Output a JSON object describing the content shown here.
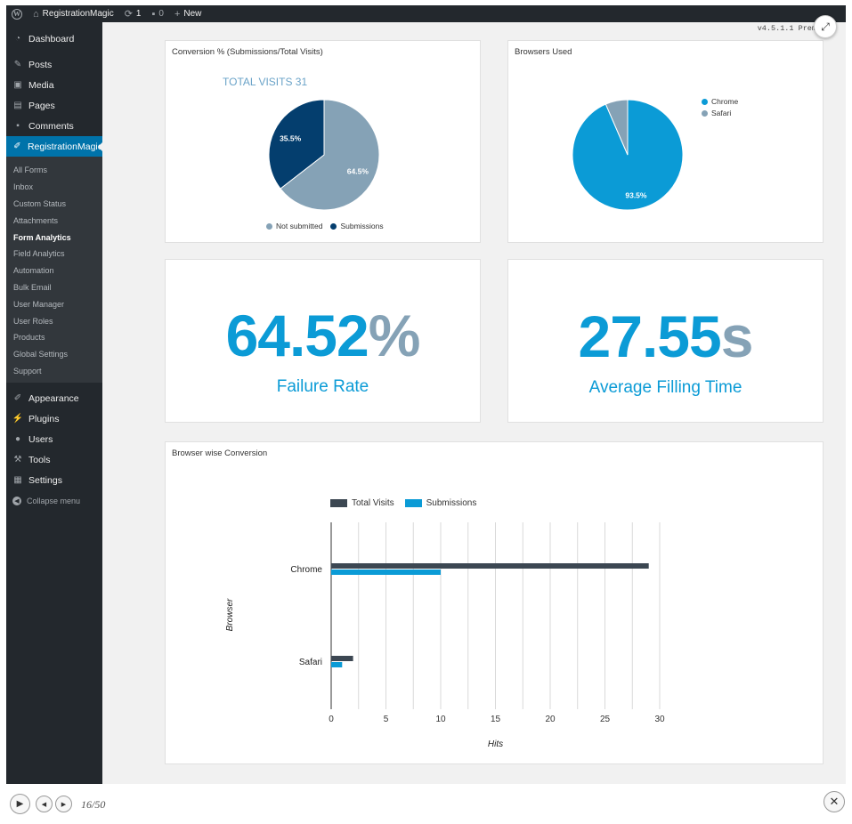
{
  "admin_bar": {
    "site_name": "RegistrationMagic",
    "updates_count": "1",
    "comments_count": "0",
    "new_label": "New"
  },
  "sidebar": {
    "top_items": [
      {
        "label": "Dashboard",
        "icon": "dashboard-icon"
      },
      {
        "label": "Posts",
        "icon": "pin-icon"
      },
      {
        "label": "Media",
        "icon": "media-icon"
      },
      {
        "label": "Pages",
        "icon": "pages-icon"
      },
      {
        "label": "Comments",
        "icon": "comment-icon"
      }
    ],
    "current_item": {
      "label": "RegistrationMagic",
      "icon": "form-icon"
    },
    "submenu": [
      {
        "label": "All Forms"
      },
      {
        "label": "Inbox"
      },
      {
        "label": "Custom Status"
      },
      {
        "label": "Attachments"
      },
      {
        "label": "Form Analytics",
        "active": true
      },
      {
        "label": "Field Analytics"
      },
      {
        "label": "Automation"
      },
      {
        "label": "Bulk Email"
      },
      {
        "label": "User Manager"
      },
      {
        "label": "User Roles"
      },
      {
        "label": "Products"
      },
      {
        "label": "Global Settings"
      },
      {
        "label": "Support"
      }
    ],
    "bottom_items": [
      {
        "label": "Appearance",
        "icon": "brush-icon"
      },
      {
        "label": "Plugins",
        "icon": "plugin-icon"
      },
      {
        "label": "Users",
        "icon": "user-icon"
      },
      {
        "label": "Tools",
        "icon": "wrench-icon"
      },
      {
        "label": "Settings",
        "icon": "settings-icon"
      }
    ],
    "collapse_label": "Collapse menu"
  },
  "version": "v4.5.1.1 Prem",
  "cards": {
    "conversion": {
      "title": "Conversion % (Submissions/Total Visits)",
      "total_visits_label": "TOTAL VISITS 31",
      "legend": [
        "Not submitted",
        "Submissions"
      ]
    },
    "browsers": {
      "title": "Browsers Used",
      "legend": [
        "Chrome",
        "Safari"
      ]
    },
    "failure": {
      "value": "64.52",
      "unit": "%",
      "label": "Failure Rate"
    },
    "filling": {
      "value": "27.55",
      "unit": "s",
      "label": "Average Filling Time"
    },
    "browser_conversion": {
      "title": "Browser wise Conversion"
    }
  },
  "colors": {
    "not_submitted": "#85a2b6",
    "submissions": "#043e6e",
    "chrome": "#0b9bd6",
    "safari": "#85a2b6",
    "total_visits_bar": "#3c4752",
    "submissions_bar": "#0b9bd6"
  },
  "chart_data": [
    {
      "type": "pie",
      "title": "Conversion % (Submissions/Total Visits)",
      "labels": [
        "Not submitted",
        "Submissions"
      ],
      "values": [
        64.5,
        35.5
      ],
      "data_labels": [
        "64.5%",
        "35.5%"
      ]
    },
    {
      "type": "pie",
      "title": "Browsers Used",
      "labels": [
        "Chrome",
        "Safari"
      ],
      "values": [
        93.5,
        6.5
      ],
      "data_labels": [
        "93.5%",
        ""
      ]
    },
    {
      "type": "bar",
      "orientation": "horizontal",
      "title": "Browser wise Conversion",
      "categories": [
        "Chrome",
        "Safari"
      ],
      "series": [
        {
          "name": "Total Visits",
          "values": [
            29,
            2
          ]
        },
        {
          "name": "Submissions",
          "values": [
            10,
            1
          ]
        }
      ],
      "xlabel": "Hits",
      "ylabel": "Browser",
      "xlim": [
        0,
        30
      ],
      "xticks": [
        0,
        5,
        10,
        15,
        20,
        25,
        30
      ],
      "grid": true,
      "legend_position": "top"
    }
  ],
  "controls": {
    "counter": "16/50"
  }
}
